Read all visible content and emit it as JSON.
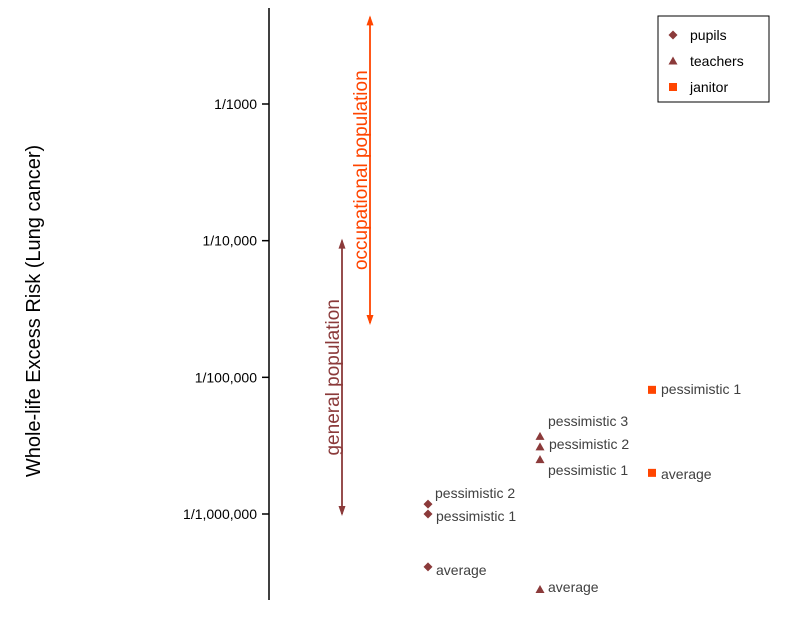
{
  "chart_data": {
    "type": "scatter",
    "title": "",
    "xlabel": "",
    "ylabel": "Whole-life Excess Risk (Lung cancer)",
    "y_scale": "log",
    "y_ticks": [
      {
        "value": 0.001,
        "label": "1/1000"
      },
      {
        "value": 0.0001,
        "label": "1/10,000"
      },
      {
        "value": 1e-05,
        "label": "1/100,000"
      },
      {
        "value": 1e-06,
        "label": "1/1,000,000"
      }
    ],
    "ylim": [
      2.2e-07,
      0.005
    ],
    "legend": {
      "placement": "top-right",
      "entries": [
        {
          "name": "pupils",
          "marker": "diamond",
          "color": "#8b3a3a"
        },
        {
          "name": "teachers",
          "marker": "triangle",
          "color": "#8b3a3a"
        },
        {
          "name": "janitor",
          "marker": "square",
          "color": "#ff4500"
        }
      ]
    },
    "series": [
      {
        "name": "pupils",
        "marker": "diamond",
        "color": "#8b3a3a",
        "points": [
          {
            "label": "pessimistic 2",
            "y": 1.18e-06
          },
          {
            "label": "pessimistic 1",
            "y": 1e-06
          },
          {
            "label": "average",
            "y": 4.1e-07
          }
        ]
      },
      {
        "name": "teachers",
        "marker": "triangle",
        "color": "#8b3a3a",
        "points": [
          {
            "label": "pessimistic 3",
            "y": 2.5e-06
          },
          {
            "label": "pessimistic 2",
            "y": 3.1e-06
          },
          {
            "label": "pessimistic 1",
            "y": 3.7e-06
          },
          {
            "label": "average",
            "y": 2.8e-07
          }
        ]
      },
      {
        "name": "janitor",
        "marker": "square",
        "color": "#ff4500",
        "points": [
          {
            "label": "pessimistic 1",
            "y": 8.1e-06
          },
          {
            "label": "average",
            "y": 2e-06
          }
        ]
      }
    ],
    "ranges": [
      {
        "label": "general population",
        "y_min": 1e-06,
        "y_max": 0.0001,
        "color": "#8b3a3a"
      },
      {
        "label": "occupational population",
        "y_min": 2.5e-05,
        "y_max": 0.0043,
        "color": "#ff4500"
      }
    ]
  }
}
